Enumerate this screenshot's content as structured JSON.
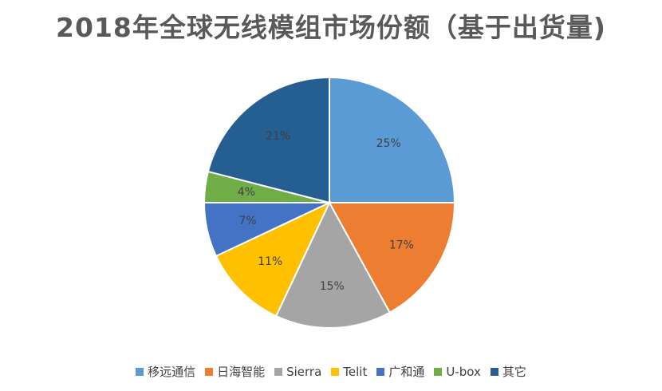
{
  "chart_data": {
    "type": "pie",
    "title": "2018年全球无线模组市场份额（基于出货量)",
    "categories": [
      "移远通信",
      "日海智能",
      "Sierra",
      "Telit",
      "广和通",
      "U-box",
      "其它"
    ],
    "values": [
      25,
      17,
      15,
      11,
      7,
      4,
      21
    ],
    "value_labels": [
      "25%",
      "17%",
      "15%",
      "11%",
      "7%",
      "4%",
      "21%"
    ],
    "colors": [
      "#5B9BD5",
      "#ED7D31",
      "#A5A5A5",
      "#FFC000",
      "#4472C4",
      "#70AD47",
      "#255E91"
    ],
    "label_colors": [
      "#404040",
      "#404040",
      "#404040",
      "#404040",
      "#404040",
      "#404040",
      "#404040"
    ],
    "legend_position": "bottom",
    "start_angle": "12 o'clock, clockwise"
  }
}
